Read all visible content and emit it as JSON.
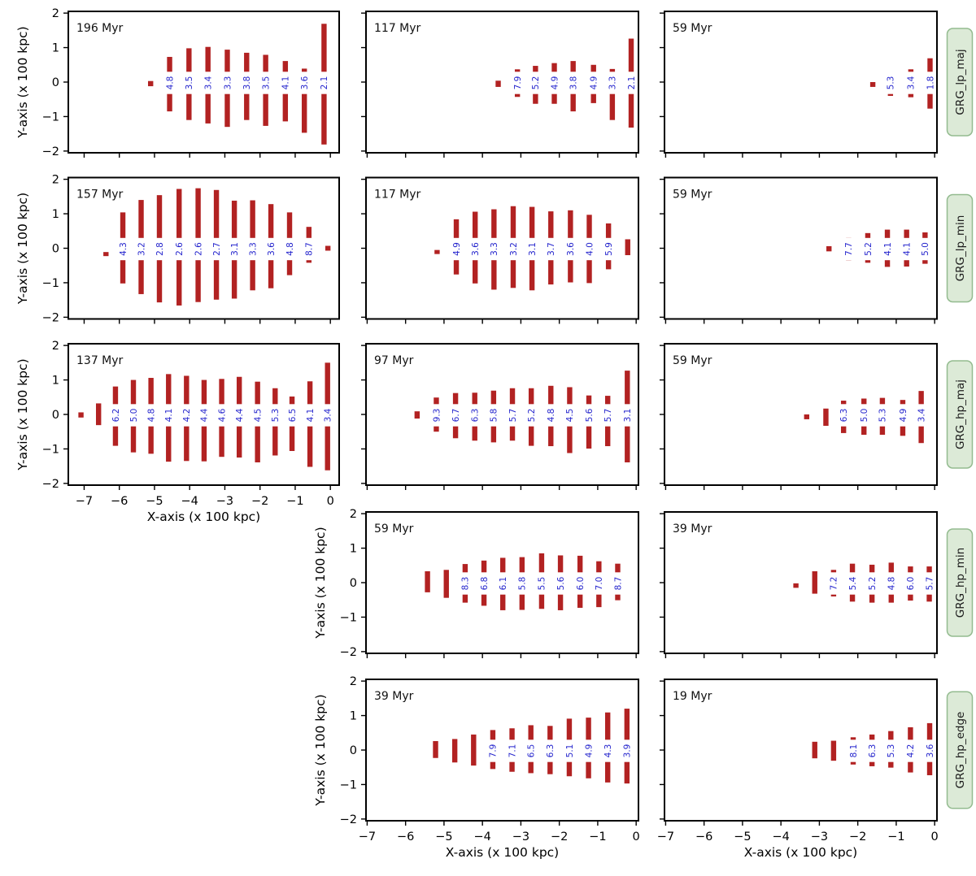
{
  "figure": {
    "bar_color": "#b22222",
    "annotation_color": "#2525cd",
    "row_label_bg": "#dcead7",
    "row_label_border": "#93bb8f",
    "row_label_text_color": "#1c1c1c",
    "axis_color": "#000000",
    "xlabel": "X-axis (x 100 kpc)",
    "ylabel": "Y-axis (x 100 kpc)",
    "x_tick_labels": [
      "−7",
      "−6",
      "−5",
      "−4",
      "−3",
      "−2",
      "−1",
      "0"
    ],
    "x_tick_values": [
      -7,
      -6,
      -5,
      -4,
      -3,
      -2,
      -1,
      0
    ],
    "y_tick_labels": [
      "2",
      "1",
      "0",
      "−1",
      "−2"
    ],
    "y_tick_values": [
      2,
      1,
      0,
      -1,
      -2
    ],
    "row_labels": [
      "GRG_lp_maj",
      "GRG_lp_min",
      "GRG_hp_maj",
      "GRG_hp_min",
      "GRG_hp_edge"
    ]
  },
  "chart_data": {
    "type": "bar",
    "note_units": "x and y in units of 100 kpc; blue numbers are annotation values printed at y=0 on each bar",
    "ylim": [
      -2.05,
      2.05
    ],
    "columns": {
      "1": {
        "xlim": [
          -7.45,
          0.25
        ]
      },
      "2": {
        "xlim": [
          -7.03,
          0.06
        ]
      },
      "3": {
        "xlim": [
          -7.03,
          0.06
        ]
      }
    },
    "panels": [
      {
        "r": 1,
        "c": 1,
        "time_label": "196 Myr",
        "row_label": "",
        "y_ticklabels": true,
        "x_ticklabels": false,
        "y_title": true,
        "x_title": false,
        "bars": [
          [
            -5.11,
            0.03,
            -0.12,
            ""
          ],
          [
            -4.57,
            0.73,
            -0.85,
            "4.8"
          ],
          [
            -4.02,
            0.98,
            -1.1,
            "3.5"
          ],
          [
            -3.48,
            1.02,
            -1.2,
            "3.4"
          ],
          [
            -2.93,
            0.94,
            -1.3,
            "3.3"
          ],
          [
            -2.38,
            0.85,
            -1.1,
            "3.8"
          ],
          [
            -1.84,
            0.79,
            -1.27,
            "3.5"
          ],
          [
            -1.28,
            0.61,
            -1.14,
            "4.1"
          ],
          [
            -0.74,
            0.39,
            -1.47,
            "3.6"
          ],
          [
            -0.18,
            1.69,
            -1.81,
            "2.1"
          ]
        ]
      },
      {
        "r": 1,
        "c": 2,
        "time_label": "117 Myr",
        "row_label": "",
        "y_ticklabels": false,
        "x_ticklabels": false,
        "y_title": false,
        "x_title": false,
        "bars": [
          [
            -3.59,
            0.04,
            -0.14,
            ""
          ],
          [
            -3.09,
            0.37,
            -0.43,
            "7.9"
          ],
          [
            -2.62,
            0.47,
            -0.63,
            "5.2"
          ],
          [
            -2.13,
            0.55,
            -0.63,
            "4.9"
          ],
          [
            -1.64,
            0.61,
            -0.85,
            "3.8"
          ],
          [
            -1.11,
            0.5,
            -0.61,
            "4.9"
          ],
          [
            -0.62,
            0.38,
            -1.1,
            "3.3"
          ],
          [
            -0.13,
            1.26,
            -1.32,
            "2.1"
          ]
        ]
      },
      {
        "r": 1,
        "c": 3,
        "time_label": "59 Myr",
        "row_label": "GRG_lp_maj",
        "y_ticklabels": false,
        "x_ticklabels": false,
        "y_title": false,
        "x_title": false,
        "bars": [
          [
            -1.61,
            0.0,
            -0.14,
            ""
          ],
          [
            -1.15,
            -0.26,
            -0.4,
            "5.3"
          ],
          [
            -0.62,
            0.37,
            -0.44,
            "3.4"
          ],
          [
            -0.12,
            0.69,
            -0.77,
            "1.8"
          ]
        ]
      },
      {
        "r": 2,
        "c": 1,
        "time_label": "157 Myr",
        "row_label": "",
        "y_ticklabels": true,
        "x_ticklabels": false,
        "y_title": true,
        "x_title": false,
        "bars": [
          [
            -6.38,
            -0.11,
            -0.21,
            ""
          ],
          [
            -5.9,
            1.04,
            -1.02,
            "4.3"
          ],
          [
            -5.38,
            1.4,
            -1.33,
            "3.2"
          ],
          [
            -4.86,
            1.54,
            -1.57,
            "2.8"
          ],
          [
            -4.3,
            1.72,
            -1.66,
            "2.6"
          ],
          [
            -3.76,
            1.74,
            -1.56,
            "2.6"
          ],
          [
            -3.24,
            1.69,
            -1.49,
            "2.7"
          ],
          [
            -2.73,
            1.38,
            -1.46,
            "3.1"
          ],
          [
            -2.21,
            1.39,
            -1.22,
            "3.3"
          ],
          [
            -1.69,
            1.28,
            -1.16,
            "3.6"
          ],
          [
            -1.16,
            1.04,
            -0.78,
            "4.8"
          ],
          [
            -0.61,
            0.62,
            -0.42,
            "8.7"
          ],
          [
            -0.07,
            0.07,
            -0.07,
            ""
          ]
        ]
      },
      {
        "r": 2,
        "c": 2,
        "time_label": "117 Myr",
        "row_label": "",
        "y_ticklabels": false,
        "x_ticklabels": false,
        "y_title": false,
        "x_title": false,
        "bars": [
          [
            -5.18,
            -0.05,
            -0.15,
            ""
          ],
          [
            -4.68,
            0.84,
            -0.76,
            "4.9"
          ],
          [
            -4.19,
            1.06,
            -1.02,
            "3.6"
          ],
          [
            -3.7,
            1.13,
            -1.2,
            "3.3"
          ],
          [
            -3.2,
            1.22,
            -1.15,
            "3.2"
          ],
          [
            -2.71,
            1.2,
            -1.22,
            "3.1"
          ],
          [
            -2.22,
            1.07,
            -1.05,
            "3.7"
          ],
          [
            -1.71,
            1.1,
            -0.99,
            "3.6"
          ],
          [
            -1.22,
            0.97,
            -1.01,
            "4.0"
          ],
          [
            -0.72,
            0.72,
            -0.61,
            "5.9"
          ],
          [
            -0.22,
            0.26,
            -0.2,
            ""
          ]
        ]
      },
      {
        "r": 2,
        "c": 3,
        "time_label": "59 Myr",
        "row_label": "GRG_lp_min",
        "y_ticklabels": false,
        "x_ticklabels": false,
        "y_title": false,
        "x_title": false,
        "bars": [
          [
            -2.75,
            0.06,
            -0.09,
            ""
          ],
          [
            -2.24,
            0.3,
            -0.35,
            "7.7"
          ],
          [
            -1.74,
            0.44,
            -0.42,
            "5.2"
          ],
          [
            -1.23,
            0.54,
            -0.54,
            "4.1"
          ],
          [
            -0.73,
            0.54,
            -0.53,
            "4.1"
          ],
          [
            -0.25,
            0.46,
            -0.45,
            "5.0"
          ]
        ]
      },
      {
        "r": 3,
        "c": 1,
        "time_label": "137 Myr",
        "row_label": "",
        "y_ticklabels": true,
        "x_ticklabels": true,
        "y_title": true,
        "x_title": true,
        "bars": [
          [
            -7.09,
            0.06,
            -0.09,
            ""
          ],
          [
            -6.59,
            0.32,
            -0.31,
            ""
          ],
          [
            -6.11,
            0.81,
            -0.91,
            "6.2"
          ],
          [
            -5.6,
            1.0,
            -1.1,
            "5.0"
          ],
          [
            -5.1,
            1.06,
            -1.14,
            "4.8"
          ],
          [
            -4.6,
            1.17,
            -1.37,
            "4.1"
          ],
          [
            -4.09,
            1.12,
            -1.35,
            "4.2"
          ],
          [
            -3.59,
            1.0,
            -1.36,
            "4.4"
          ],
          [
            -3.09,
            1.03,
            -1.23,
            "4.6"
          ],
          [
            -2.59,
            1.09,
            -1.25,
            "4.4"
          ],
          [
            -2.07,
            0.95,
            -1.39,
            "4.5"
          ],
          [
            -1.57,
            0.76,
            -1.19,
            "5.3"
          ],
          [
            -1.09,
            0.52,
            -1.06,
            "6.5"
          ],
          [
            -0.58,
            0.96,
            -1.52,
            "4.1"
          ],
          [
            -0.08,
            1.5,
            -1.62,
            "3.4"
          ]
        ]
      },
      {
        "r": 3,
        "c": 2,
        "time_label": "97 Myr",
        "row_label": "",
        "y_ticklabels": false,
        "x_ticklabels": false,
        "y_title": false,
        "x_title": false,
        "bars": [
          [
            -5.7,
            0.09,
            -0.12,
            ""
          ],
          [
            -5.2,
            0.49,
            -0.5,
            "9.3"
          ],
          [
            -4.7,
            0.62,
            -0.69,
            "6.7"
          ],
          [
            -4.2,
            0.63,
            -0.76,
            "6.3"
          ],
          [
            -3.71,
            0.69,
            -0.81,
            "5.8"
          ],
          [
            -3.22,
            0.76,
            -0.76,
            "5.7"
          ],
          [
            -2.73,
            0.76,
            -0.91,
            "5.2"
          ],
          [
            -2.22,
            0.83,
            -0.92,
            "4.8"
          ],
          [
            -1.73,
            0.79,
            -1.12,
            "4.5"
          ],
          [
            -1.23,
            0.55,
            -0.99,
            "5.6"
          ],
          [
            -0.74,
            0.54,
            -0.92,
            "5.7"
          ],
          [
            -0.23,
            1.27,
            -1.39,
            "3.1"
          ]
        ]
      },
      {
        "r": 3,
        "c": 3,
        "time_label": "59 Myr",
        "row_label": "GRG_hp_maj",
        "y_ticklabels": false,
        "x_ticklabels": false,
        "y_title": false,
        "x_title": false,
        "bars": [
          [
            -3.33,
            0.0,
            -0.14,
            ""
          ],
          [
            -2.83,
            0.17,
            -0.33,
            ""
          ],
          [
            -2.37,
            0.4,
            -0.54,
            "6.3"
          ],
          [
            -1.84,
            0.46,
            -0.59,
            "5.0"
          ],
          [
            -1.36,
            0.48,
            -0.59,
            "5.3"
          ],
          [
            -0.83,
            0.42,
            -0.62,
            "4.9"
          ],
          [
            -0.35,
            0.68,
            -0.83,
            "3.4"
          ]
        ]
      },
      {
        "r": 4,
        "c": 2,
        "time_label": "59 Myr",
        "row_label": "",
        "y_ticklabels": true,
        "x_ticklabels": false,
        "y_title": true,
        "x_title": false,
        "bars": [
          [
            -5.43,
            0.33,
            -0.28,
            ""
          ],
          [
            -4.94,
            0.37,
            -0.44,
            ""
          ],
          [
            -4.45,
            0.54,
            -0.58,
            "8.3"
          ],
          [
            -3.96,
            0.64,
            -0.67,
            "6.8"
          ],
          [
            -3.47,
            0.72,
            -0.8,
            "6.1"
          ],
          [
            -2.97,
            0.74,
            -0.79,
            "5.8"
          ],
          [
            -2.46,
            0.85,
            -0.76,
            "5.5"
          ],
          [
            -1.97,
            0.79,
            -0.8,
            "5.6"
          ],
          [
            -1.46,
            0.78,
            -0.73,
            "6.0"
          ],
          [
            -0.97,
            0.62,
            -0.71,
            "7.0"
          ],
          [
            -0.48,
            0.55,
            -0.51,
            "8.7"
          ]
        ]
      },
      {
        "r": 4,
        "c": 3,
        "time_label": "39 Myr",
        "row_label": "GRG_hp_min",
        "y_ticklabels": false,
        "x_ticklabels": false,
        "y_title": false,
        "x_title": false,
        "bars": [
          [
            -3.61,
            -0.02,
            -0.15,
            ""
          ],
          [
            -3.12,
            0.33,
            -0.32,
            ""
          ],
          [
            -2.63,
            0.37,
            -0.4,
            "7.2"
          ],
          [
            -2.14,
            0.55,
            -0.55,
            "5.4"
          ],
          [
            -1.63,
            0.52,
            -0.58,
            "5.2"
          ],
          [
            -1.13,
            0.58,
            -0.58,
            "4.8"
          ],
          [
            -0.63,
            0.47,
            -0.52,
            "6.0"
          ],
          [
            -0.14,
            0.47,
            -0.55,
            "5.7"
          ]
        ]
      },
      {
        "r": 5,
        "c": 2,
        "time_label": "39 Myr",
        "row_label": "",
        "y_ticklabels": true,
        "x_ticklabels": true,
        "y_title": true,
        "x_title": true,
        "bars": [
          [
            -5.22,
            0.26,
            -0.23,
            ""
          ],
          [
            -4.72,
            0.32,
            -0.36,
            ""
          ],
          [
            -4.23,
            0.45,
            -0.45,
            ""
          ],
          [
            -3.73,
            0.58,
            -0.55,
            "7.9"
          ],
          [
            -3.23,
            0.63,
            -0.63,
            "7.1"
          ],
          [
            -2.74,
            0.72,
            -0.67,
            "6.5"
          ],
          [
            -2.24,
            0.7,
            -0.7,
            "6.3"
          ],
          [
            -1.74,
            0.91,
            -0.76,
            "5.1"
          ],
          [
            -1.24,
            0.94,
            -0.82,
            "4.9"
          ],
          [
            -0.74,
            1.09,
            -0.94,
            "4.3"
          ],
          [
            -0.24,
            1.2,
            -0.97,
            "3.9"
          ]
        ]
      },
      {
        "r": 5,
        "c": 3,
        "time_label": "19 Myr",
        "row_label": "GRG_hp_edge",
        "y_ticklabels": false,
        "x_ticklabels": true,
        "y_title": false,
        "x_title": true,
        "bars": [
          [
            -3.12,
            0.24,
            -0.24,
            ""
          ],
          [
            -2.63,
            0.27,
            -0.31,
            ""
          ],
          [
            -2.12,
            0.37,
            -0.42,
            "8.1"
          ],
          [
            -1.63,
            0.45,
            -0.47,
            "6.3"
          ],
          [
            -1.14,
            0.55,
            -0.51,
            "5.3"
          ],
          [
            -0.63,
            0.66,
            -0.65,
            "4.2"
          ],
          [
            -0.13,
            0.78,
            -0.73,
            "3.6"
          ]
        ]
      }
    ]
  }
}
